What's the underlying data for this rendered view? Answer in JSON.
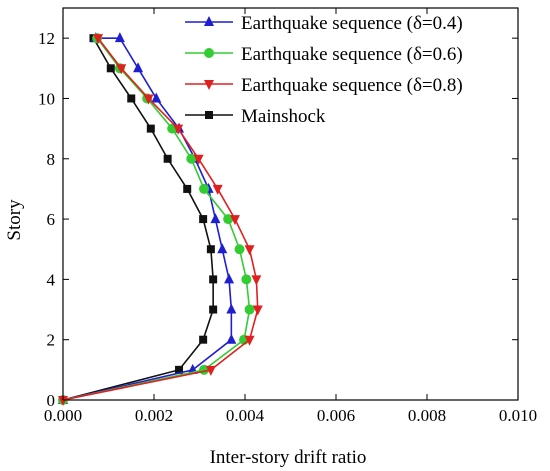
{
  "chart_data": {
    "type": "line",
    "xlabel": "Inter-story drift ratio",
    "ylabel": "Story",
    "xlim": [
      0,
      0.01
    ],
    "ylim": [
      0,
      13
    ],
    "xticks": [
      "0.000",
      "0.002",
      "0.004",
      "0.006",
      "0.008",
      "0.010"
    ],
    "yticks": [
      "0",
      "2",
      "4",
      "6",
      "8",
      "10",
      "12"
    ],
    "grid": false,
    "legend_position": "top-right",
    "series": [
      {
        "name": "Earthquake sequence (δ=0.4)",
        "color": "#1f1fd0",
        "marker": "triangle-up",
        "x": [
          0.0,
          0.00285,
          0.0037,
          0.0037,
          0.00365,
          0.0035,
          0.00335,
          0.0032,
          0.0029,
          0.00255,
          0.00205,
          0.00165,
          0.00125,
          0.00072
        ],
        "y": [
          0,
          1,
          2,
          3,
          4,
          5,
          6,
          7,
          8,
          9,
          10,
          11,
          12,
          12
        ]
      },
      {
        "name": "Earthquake sequence (δ=0.6)",
        "color": "#33cc33",
        "marker": "circle",
        "x": [
          0.0,
          0.0031,
          0.00398,
          0.0041,
          0.00403,
          0.00388,
          0.00363,
          0.0031,
          0.00282,
          0.0024,
          0.00185,
          0.00125,
          0.00075
        ],
        "y": [
          0,
          1,
          2,
          3,
          4,
          5,
          6,
          7,
          8,
          9,
          10,
          11,
          12
        ]
      },
      {
        "name": "Earthquake sequence (δ=0.8)",
        "color": "#e02020",
        "marker": "triangle-down",
        "x": [
          0.0,
          0.00325,
          0.0041,
          0.00428,
          0.00425,
          0.0041,
          0.00378,
          0.0034,
          0.00298,
          0.00253,
          0.00188,
          0.00128,
          0.00077
        ],
        "y": [
          0,
          1,
          2,
          3,
          4,
          5,
          6,
          7,
          8,
          9,
          10,
          11,
          12
        ]
      },
      {
        "name": "Mainshock",
        "color": "#111111",
        "marker": "square",
        "x": [
          0.0,
          0.00255,
          0.00308,
          0.0033,
          0.0033,
          0.00325,
          0.00308,
          0.00273,
          0.0023,
          0.00193,
          0.0015,
          0.00105,
          0.00067
        ],
        "y": [
          0,
          1,
          2,
          3,
          4,
          5,
          6,
          7,
          8,
          9,
          10,
          11,
          12
        ]
      }
    ]
  }
}
